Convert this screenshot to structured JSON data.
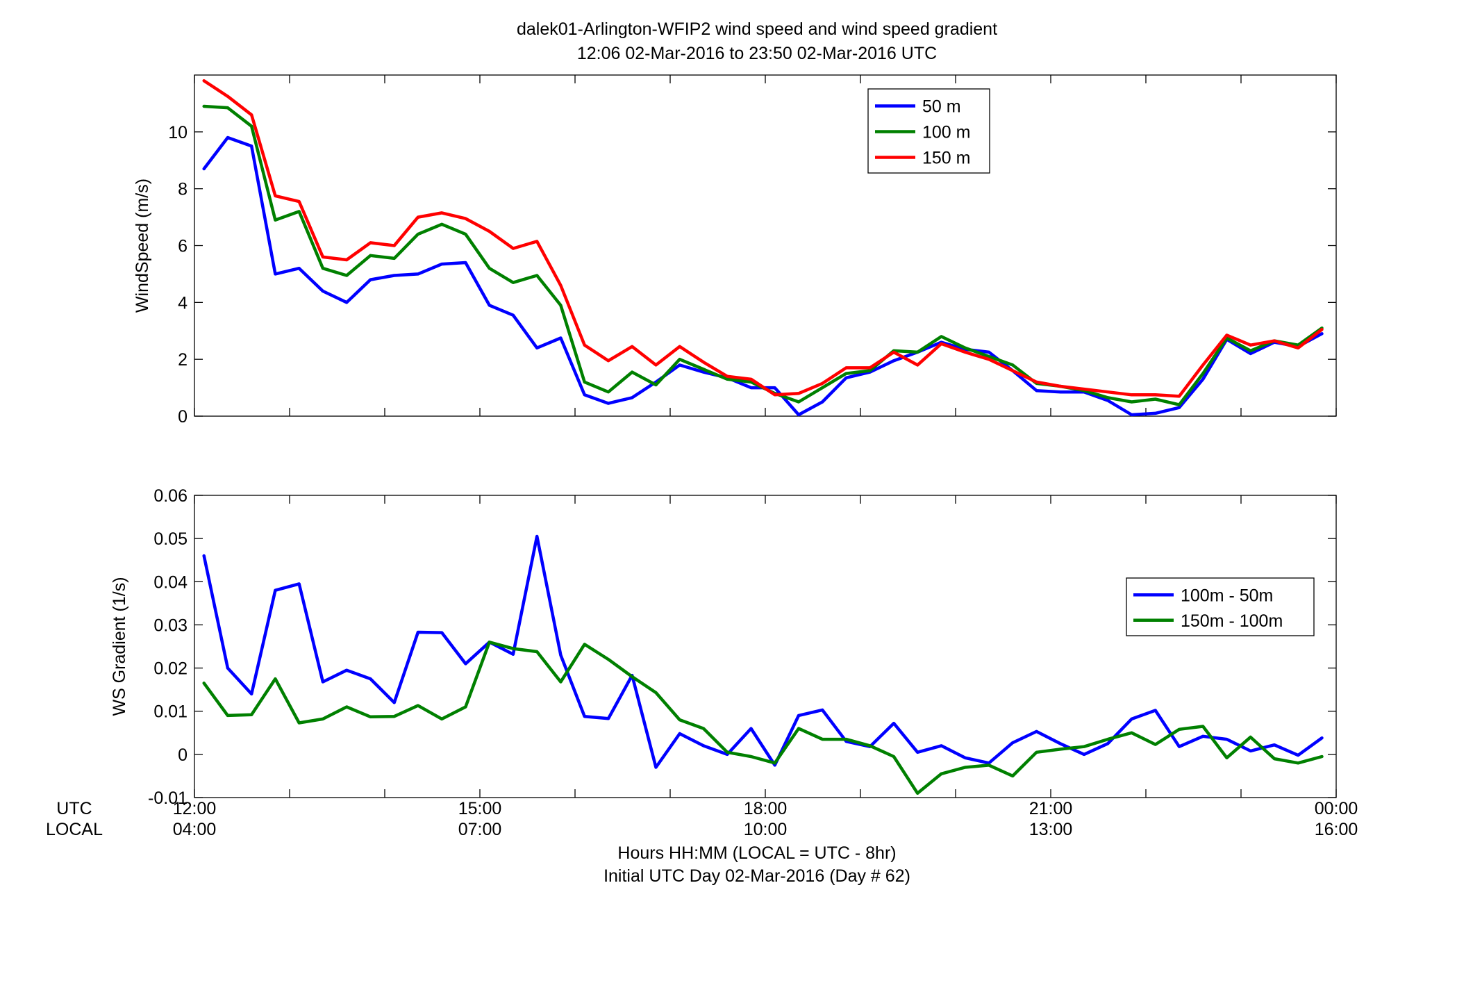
{
  "title": {
    "line1": "dalek01-Arlington-WFIP2  wind speed and wind speed gradient",
    "line2": "12:06 02-Mar-2016 to 23:50 02-Mar-2016  UTC"
  },
  "xaxis": {
    "utc_label": "UTC",
    "local_label": "LOCAL",
    "utc_ticks": [
      "12:00",
      "15:00",
      "18:00",
      "21:00",
      "00:00"
    ],
    "local_ticks": [
      "04:00",
      "07:00",
      "10:00",
      "13:00",
      "16:00"
    ],
    "xlabel_line1": "Hours HH:MM  (LOCAL = UTC - 8hr)",
    "xlabel_line2": "Initial UTC Day 02-Mar-2016 (Day # 62)"
  },
  "colors": {
    "blue": "#0000ff",
    "green": "#008000",
    "red": "#ff0000"
  },
  "chart_data": [
    {
      "type": "line",
      "ylabel": "WindSpeed (m/s)",
      "xlim": [
        "12:00",
        "24:00"
      ],
      "ylim": [
        0,
        12
      ],
      "yticks": [
        0,
        2,
        4,
        6,
        8,
        10
      ],
      "grid": false,
      "legend_position": "top-center",
      "x": [
        "12:06",
        "12:21",
        "12:36",
        "12:51",
        "13:06",
        "13:21",
        "13:36",
        "13:51",
        "14:06",
        "14:21",
        "14:36",
        "14:51",
        "15:06",
        "15:21",
        "15:36",
        "15:51",
        "16:06",
        "16:21",
        "16:36",
        "16:51",
        "17:06",
        "17:21",
        "17:36",
        "17:51",
        "18:06",
        "18:21",
        "18:36",
        "18:51",
        "19:06",
        "19:21",
        "19:36",
        "19:51",
        "20:06",
        "20:21",
        "20:36",
        "20:51",
        "21:06",
        "21:21",
        "21:36",
        "21:51",
        "22:06",
        "22:21",
        "22:36",
        "22:51",
        "23:06",
        "23:21",
        "23:36",
        "23:51"
      ],
      "series": [
        {
          "name": "50 m",
          "color": "#0000ff",
          "values": [
            8.7,
            9.8,
            9.5,
            5.0,
            5.2,
            4.4,
            4.0,
            4.8,
            4.95,
            5.0,
            5.35,
            5.4,
            3.9,
            3.55,
            2.4,
            2.75,
            0.75,
            0.45,
            0.65,
            1.2,
            1.8,
            1.55,
            1.35,
            1.0,
            1.0,
            0.05,
            0.5,
            1.35,
            1.55,
            1.95,
            2.25,
            2.6,
            2.35,
            2.25,
            1.6,
            0.9,
            0.85,
            0.85,
            0.55,
            0.05,
            0.1,
            0.3,
            1.3,
            2.7,
            2.2,
            2.6,
            2.45,
            2.9
          ]
        },
        {
          "name": "100 m",
          "color": "#008000",
          "values": [
            10.9,
            10.85,
            10.2,
            6.9,
            7.2,
            5.2,
            4.95,
            5.65,
            5.55,
            6.4,
            6.75,
            6.4,
            5.2,
            4.7,
            4.95,
            3.9,
            1.2,
            0.85,
            1.55,
            1.1,
            2.0,
            1.65,
            1.3,
            1.2,
            0.8,
            0.5,
            1.0,
            1.5,
            1.6,
            2.3,
            2.25,
            2.8,
            2.4,
            2.1,
            1.8,
            1.15,
            1.05,
            0.9,
            0.65,
            0.5,
            0.6,
            0.4,
            1.5,
            2.75,
            2.3,
            2.65,
            2.5,
            3.1
          ]
        },
        {
          "name": "150 m",
          "color": "#ff0000",
          "values": [
            11.8,
            11.25,
            10.6,
            7.75,
            7.55,
            5.6,
            5.5,
            6.1,
            6.0,
            7.0,
            7.15,
            6.95,
            6.5,
            5.9,
            6.15,
            4.6,
            2.5,
            1.95,
            2.45,
            1.8,
            2.45,
            1.9,
            1.4,
            1.3,
            0.75,
            0.8,
            1.15,
            1.7,
            1.7,
            2.25,
            1.8,
            2.55,
            2.25,
            2.0,
            1.6,
            1.2,
            1.05,
            0.95,
            0.85,
            0.75,
            0.75,
            0.7,
            1.8,
            2.85,
            2.5,
            2.65,
            2.4,
            3.05
          ]
        }
      ]
    },
    {
      "type": "line",
      "ylabel": "WS Gradient (1/s)",
      "xlim": [
        "12:00",
        "24:00"
      ],
      "ylim": [
        -0.01,
        0.06
      ],
      "yticks": [
        -0.01,
        0,
        0.01,
        0.02,
        0.03,
        0.04,
        0.05,
        0.06
      ],
      "ytick_labels": [
        "-0.01",
        "0",
        "0.01",
        "0.02",
        "0.03",
        "0.04",
        "0.05",
        "0.06"
      ],
      "grid": false,
      "legend_position": "right",
      "x": [
        "12:06",
        "12:21",
        "12:36",
        "12:51",
        "13:06",
        "13:21",
        "13:36",
        "13:51",
        "14:06",
        "14:21",
        "14:36",
        "14:51",
        "15:06",
        "15:21",
        "15:36",
        "15:51",
        "16:06",
        "16:21",
        "16:36",
        "16:51",
        "17:06",
        "17:21",
        "17:36",
        "17:51",
        "18:06",
        "18:21",
        "18:36",
        "18:51",
        "19:06",
        "19:21",
        "19:36",
        "19:51",
        "20:06",
        "20:21",
        "20:36",
        "20:51",
        "21:06",
        "21:21",
        "21:36",
        "21:51",
        "22:06",
        "22:21",
        "22:36",
        "22:51",
        "23:06",
        "23:21",
        "23:36",
        "23:51"
      ],
      "series": [
        {
          "name": "100m - 50m",
          "color": "#0000ff",
          "values": [
            0.046,
            0.02,
            0.014,
            0.038,
            0.0395,
            0.0168,
            0.0195,
            0.0175,
            0.012,
            0.0283,
            0.0282,
            0.021,
            0.026,
            0.0232,
            0.0505,
            0.023,
            0.0088,
            0.0083,
            0.0183,
            -0.003,
            0.0048,
            0.002,
            0.0,
            0.006,
            -0.0025,
            0.009,
            0.0103,
            0.003,
            0.0018,
            0.0072,
            0.0005,
            0.002,
            -0.0008,
            -0.002,
            0.0027,
            0.0053,
            0.0025,
            0.0,
            0.0025,
            0.0082,
            0.0102,
            0.0018,
            0.0042,
            0.0035,
            0.0008,
            0.0022,
            -0.0002,
            0.0038
          ]
        },
        {
          "name": "150m - 100m",
          "color": "#008000",
          "values": [
            0.0165,
            0.009,
            0.0092,
            0.0175,
            0.0073,
            0.0082,
            0.011,
            0.0087,
            0.0088,
            0.0113,
            0.0082,
            0.011,
            0.026,
            0.0245,
            0.0238,
            0.0168,
            0.0255,
            0.022,
            0.018,
            0.0143,
            0.008,
            0.006,
            0.0005,
            -0.0005,
            -0.002,
            0.006,
            0.0035,
            0.0035,
            0.002,
            -0.0005,
            -0.009,
            -0.0045,
            -0.003,
            -0.0025,
            -0.005,
            0.0005,
            0.0012,
            0.0018,
            0.0035,
            0.005,
            0.0023,
            0.0058,
            0.0065,
            -0.0008,
            0.004,
            -0.001,
            -0.002,
            -0.0005
          ]
        }
      ]
    }
  ]
}
